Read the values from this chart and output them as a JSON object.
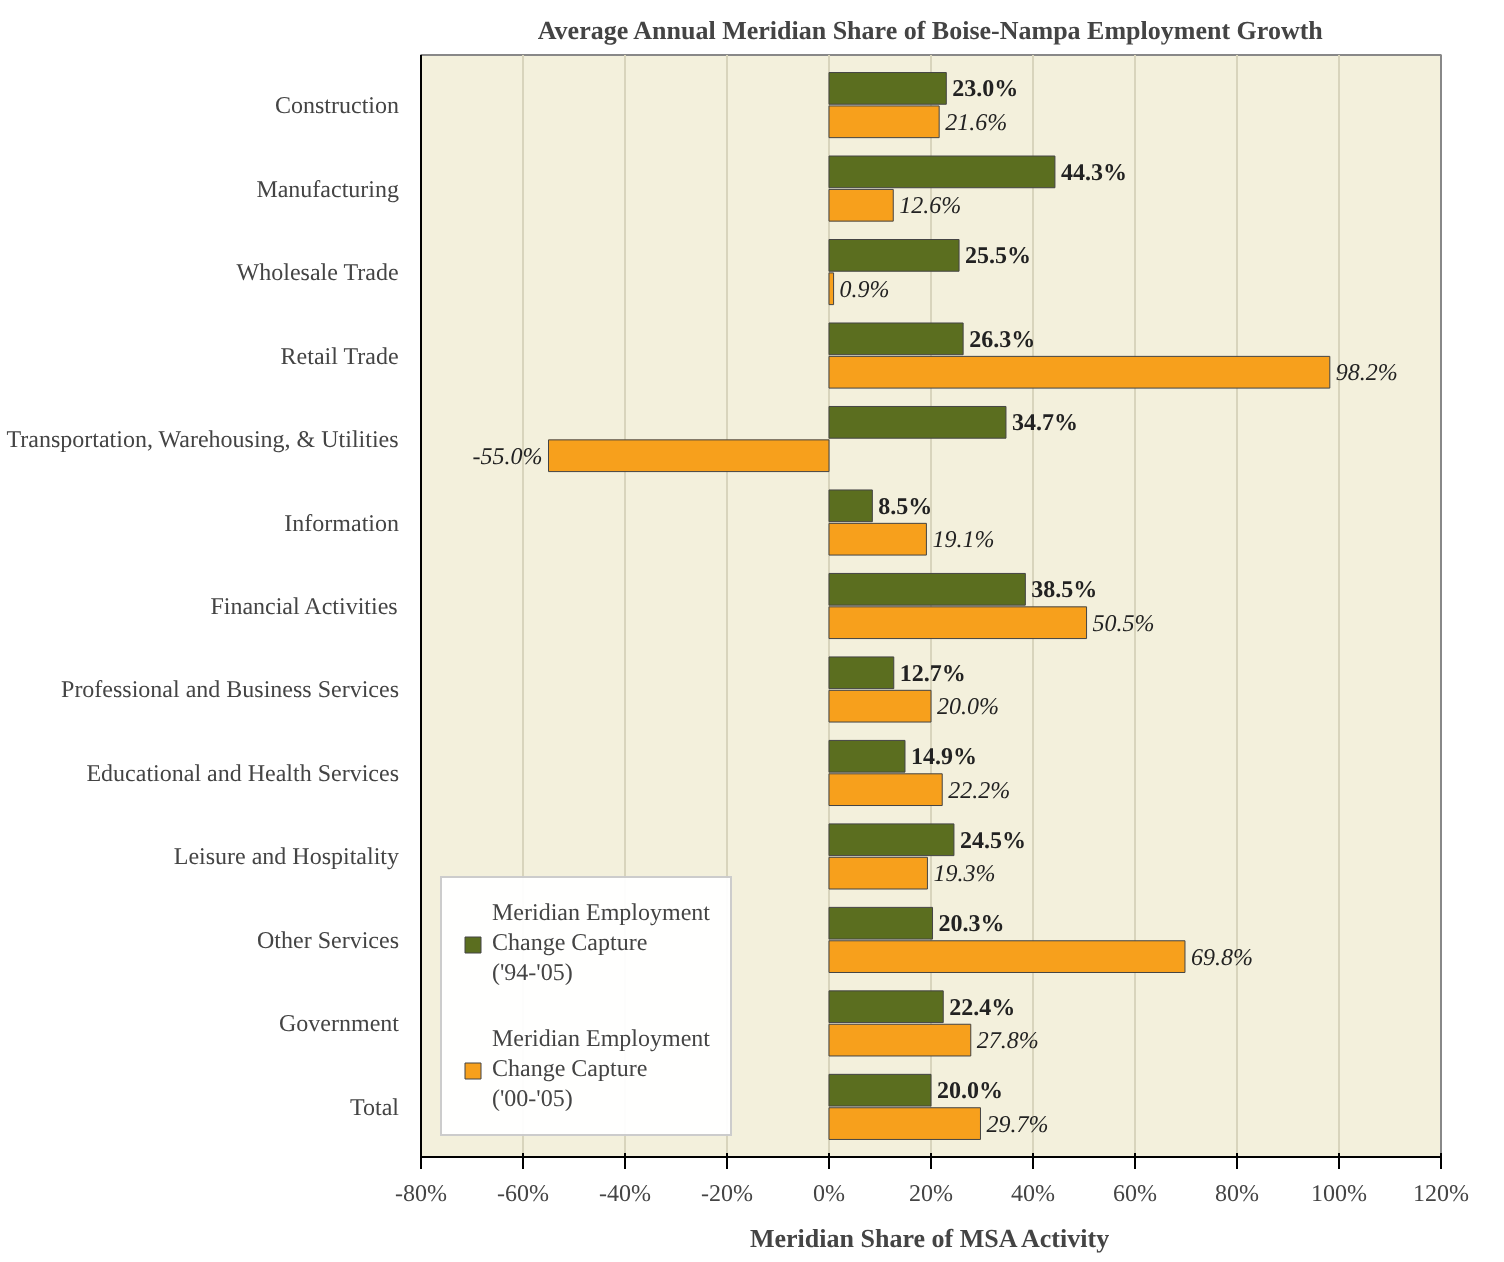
{
  "chart_data": {
    "type": "bar",
    "orientation": "horizontal",
    "title": "Average Annual Meridian Share of Boise-Nampa Employment Growth",
    "xlabel": "Meridian Share of MSA Activity",
    "categories": [
      "Construction",
      "Manufacturing",
      "Wholesale Trade",
      "Retail Trade",
      "Transportation, Warehousing, & Utilities",
      "Information",
      "Financial Activities",
      "Professional and Business Services",
      "Educational and Health Services",
      "Leisure and Hospitality",
      "Other Services",
      "Government",
      "Total"
    ],
    "series": [
      {
        "name": "Meridian Employment Change Capture ('94-'05)",
        "color": "#5b6e1f",
        "values": [
          23.0,
          44.3,
          25.5,
          26.3,
          34.7,
          8.5,
          38.5,
          12.7,
          14.9,
          24.5,
          20.3,
          22.4,
          20.0
        ],
        "value_labels": [
          "23.0%",
          "44.3%",
          "25.5%",
          "26.3%",
          "34.7%",
          "8.5%",
          "38.5%",
          "12.7%",
          "14.9%",
          "24.5%",
          "20.3%",
          "22.4%",
          "20.0%"
        ]
      },
      {
        "name": "Meridian Employment Change Capture ('00-'05)",
        "color": "#f7a01c",
        "values": [
          21.6,
          12.6,
          0.9,
          98.2,
          -55.0,
          19.1,
          50.5,
          20.0,
          22.2,
          19.3,
          69.8,
          27.8,
          29.7
        ],
        "value_labels": [
          "21.6%",
          "12.6%",
          "0.9%",
          "98.2%",
          "-55.0%",
          "19.1%",
          "50.5%",
          "20.0%",
          "22.2%",
          "19.3%",
          "69.8%",
          "27.8%",
          "29.7%"
        ]
      }
    ],
    "xlim": [
      -80,
      120
    ],
    "xticks": [
      {
        "value": -80,
        "label": "-80%"
      },
      {
        "value": -60,
        "label": "-60%"
      },
      {
        "value": -40,
        "label": "-40%"
      },
      {
        "value": -20,
        "label": "-20%"
      },
      {
        "value": 0,
        "label": "0%"
      },
      {
        "value": 20,
        "label": "20%"
      },
      {
        "value": 40,
        "label": "40%"
      },
      {
        "value": 60,
        "label": "60%"
      },
      {
        "value": 80,
        "label": "80%"
      },
      {
        "value": 100,
        "label": "100%"
      },
      {
        "value": 120,
        "label": "120%"
      }
    ],
    "grid": "x",
    "legend": "bottom left"
  }
}
